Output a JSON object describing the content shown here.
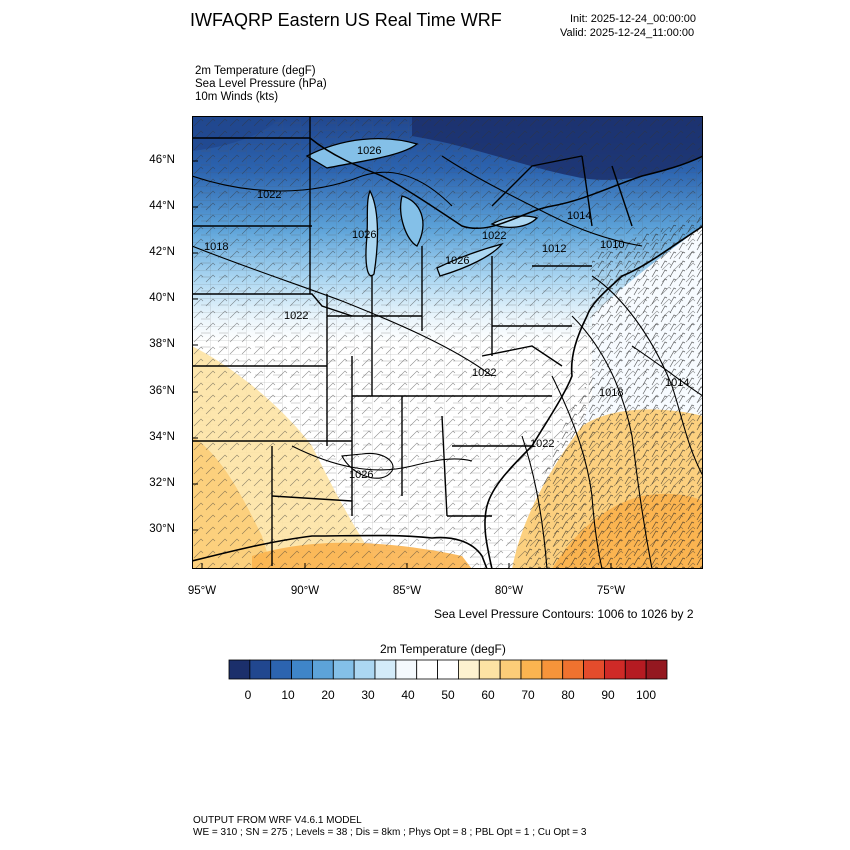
{
  "header": {
    "title": "IWFAQRP Eastern US Real Time WRF",
    "init": "Init: 2025-12-24_00:00:00",
    "valid": "Valid: 2025-12-24_11:00:00"
  },
  "fields": [
    "2m Temperature   (degF)",
    "Sea Level Pressure   (hPa)",
    "10m Winds   (kts)"
  ],
  "map": {
    "lat_labels": [
      "46°N",
      "44°N",
      "42°N",
      "40°N",
      "38°N",
      "36°N",
      "34°N",
      "32°N",
      "30°N"
    ],
    "lon_labels": [
      "95°W",
      "90°W",
      "85°W",
      "80°W",
      "75°W"
    ],
    "pressure_labels": [
      "1026",
      "1022",
      "1018",
      "1026",
      "1022",
      "1026",
      "1014",
      "1012",
      "1010",
      "1022",
      "1022",
      "1018",
      "1014",
      "1022",
      "1026"
    ]
  },
  "contour_note": "Sea Level Pressure Contours: 1006 to 1026 by 2",
  "colorbar": {
    "title": "2m Temperature  (degF)",
    "labels": [
      "0",
      "10",
      "20",
      "30",
      "40",
      "50",
      "60",
      "70",
      "80",
      "90",
      "100"
    ],
    "colors": [
      "#1b2f6b",
      "#21478f",
      "#2c64b0",
      "#3f85c8",
      "#5da3d9",
      "#84c0e8",
      "#acd7f2",
      "#d3ebf9",
      "#f4f9fd",
      "#ffffff",
      "#ffffff",
      "#fdf2d0",
      "#fde3a4",
      "#fccd78",
      "#fbb450",
      "#f6943a",
      "#ef722f",
      "#e44c2c",
      "#cf2a27",
      "#b51b22",
      "#941820"
    ]
  },
  "footer": {
    "line1": "OUTPUT FROM WRF V4.6.1 MODEL",
    "line2": "WE = 310 ; SN = 275 ; Levels = 38 ; Dis = 8km ; Phys Opt = 8 ; PBL Opt = 1 ; Cu Opt = 3"
  }
}
